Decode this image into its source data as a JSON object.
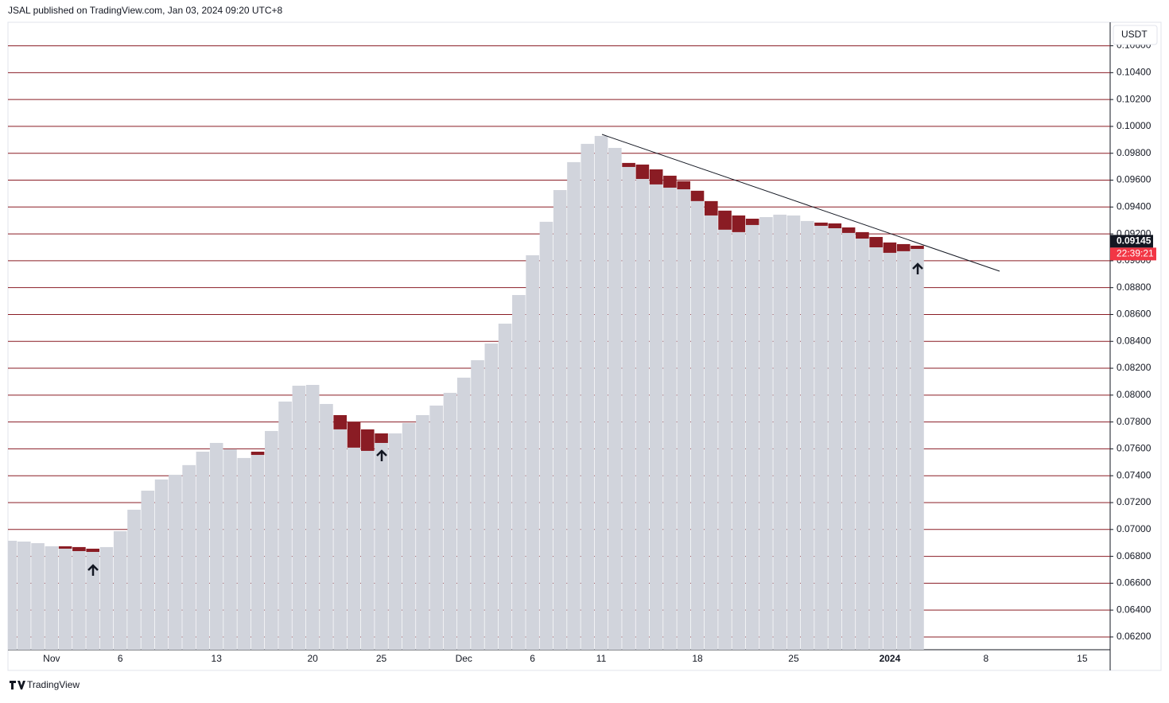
{
  "header": {
    "text": "JSAL published on TradingView.com, Jan 03, 2024 09:20 UTC+8",
    "currency": "USDT",
    "brand": "TradingView"
  },
  "chart_data": {
    "type": "bar",
    "categories": [
      null,
      null,
      null,
      "Nov",
      null,
      null,
      null,
      null,
      "6",
      null,
      null,
      null,
      null,
      null,
      null,
      "13",
      null,
      null,
      null,
      null,
      null,
      null,
      "20",
      null,
      null,
      null,
      null,
      "25",
      null,
      null,
      null,
      null,
      null,
      "Dec",
      null,
      null,
      null,
      null,
      "6",
      null,
      null,
      null,
      null,
      "11",
      null,
      null,
      null,
      null,
      null,
      null,
      "18",
      null,
      null,
      null,
      null,
      null,
      null,
      "25",
      null,
      null,
      null,
      null,
      null,
      null,
      "2024",
      null,
      null,
      null,
      null,
      null,
      null,
      "8",
      null,
      null,
      null,
      null,
      null,
      null,
      "15",
      null
    ],
    "close": [
      0.06916,
      0.0691,
      0.06898,
      0.06875,
      0.06857,
      0.06839,
      0.06833,
      0.06869,
      0.06987,
      0.07147,
      0.07289,
      0.07372,
      0.07407,
      0.07479,
      0.07579,
      0.07644,
      0.07597,
      0.07532,
      0.07555,
      0.07733,
      0.07952,
      0.0807,
      0.08076,
      0.07934,
      0.07745,
      0.07609,
      0.07585,
      0.07644,
      0.07715,
      0.07792,
      0.07851,
      0.07922,
      0.08017,
      0.0813,
      0.0826,
      0.08384,
      0.08532,
      0.08745,
      0.09041,
      0.0929,
      0.09526,
      0.09734,
      0.0987,
      0.09929,
      0.0984,
      0.09698,
      0.09609,
      0.09568,
      0.09544,
      0.09532,
      0.09444,
      0.09337,
      0.09231,
      0.09213,
      0.09266,
      0.09325,
      0.09343,
      0.09337,
      0.09296,
      0.0926,
      0.09242,
      0.09207,
      0.09165,
      0.091,
      0.09059,
      0.09071,
      0.09088,
      null,
      null,
      null,
      null,
      null,
      null,
      null,
      null,
      null,
      null,
      null,
      null,
      null
    ],
    "open": [
      null,
      null,
      null,
      null,
      0.06875,
      0.06869,
      0.06857,
      null,
      null,
      null,
      null,
      null,
      null,
      null,
      null,
      null,
      null,
      null,
      0.07579,
      null,
      null,
      null,
      null,
      null,
      0.07851,
      0.07798,
      0.07745,
      0.07715,
      null,
      null,
      null,
      null,
      null,
      null,
      null,
      null,
      null,
      null,
      null,
      null,
      null,
      null,
      null,
      null,
      null,
      0.09728,
      0.09716,
      0.0968,
      0.09633,
      0.09592,
      0.09521,
      0.09444,
      0.09373,
      0.09337,
      0.09313,
      null,
      null,
      null,
      null,
      0.09284,
      0.09278,
      0.09248,
      0.09213,
      0.09177,
      0.09136,
      0.09124,
      0.09112,
      null,
      null,
      null,
      null,
      null,
      null,
      null,
      null,
      null,
      null,
      null,
      null,
      null
    ],
    "color": "#d1d4dc",
    "down_color": "#8a1c24",
    "grid": true,
    "grid_color": "#8a1c24",
    "ylim": [
      0.06105,
      0.10775
    ],
    "yticks": [
      {
        "value": 0.062,
        "label": "0.06200"
      },
      {
        "value": 0.064,
        "label": "0.06400"
      },
      {
        "value": 0.066,
        "label": "0.06600"
      },
      {
        "value": 0.068,
        "label": "0.06800"
      },
      {
        "value": 0.07,
        "label": "0.07000"
      },
      {
        "value": 0.072,
        "label": "0.07200"
      },
      {
        "value": 0.074,
        "label": "0.07400"
      },
      {
        "value": 0.076,
        "label": "0.07600"
      },
      {
        "value": 0.078,
        "label": "0.07800"
      },
      {
        "value": 0.08,
        "label": "0.08000"
      },
      {
        "value": 0.082,
        "label": "0.08200"
      },
      {
        "value": 0.084,
        "label": "0.08400"
      },
      {
        "value": 0.086,
        "label": "0.08600"
      },
      {
        "value": 0.088,
        "label": "0.08800"
      },
      {
        "value": 0.09,
        "label": "0.09000"
      },
      {
        "value": 0.092,
        "label": "0.09200"
      },
      {
        "value": 0.094,
        "label": "0.09400"
      },
      {
        "value": 0.096,
        "label": "0.09600"
      },
      {
        "value": 0.098,
        "label": "0.09800"
      },
      {
        "value": 0.1,
        "label": "0.10000"
      },
      {
        "value": 0.102,
        "label": "0.10200"
      },
      {
        "value": 0.104,
        "label": "0.10400"
      },
      {
        "value": 0.106,
        "label": "0.10600"
      }
    ],
    "last_price": {
      "value": 0.09145,
      "label": "0.09145"
    },
    "countdown": "22:39:21"
  }
}
